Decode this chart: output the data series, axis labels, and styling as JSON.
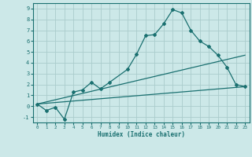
{
  "xlabel": "Humidex (Indice chaleur)",
  "bg_color": "#cce8e8",
  "grid_color": "#aacccc",
  "line_color": "#1a7070",
  "xlim": [
    -0.5,
    23.5
  ],
  "ylim": [
    -1.5,
    9.5
  ],
  "xticks": [
    0,
    1,
    2,
    3,
    4,
    5,
    6,
    7,
    8,
    9,
    10,
    11,
    12,
    13,
    14,
    15,
    16,
    17,
    18,
    19,
    20,
    21,
    22,
    23
  ],
  "yticks": [
    -1,
    0,
    1,
    2,
    3,
    4,
    5,
    6,
    7,
    8,
    9
  ],
  "curve1_x": [
    0,
    1,
    2,
    3,
    4,
    5,
    6,
    7,
    8,
    10,
    11,
    12,
    13,
    14,
    15,
    16,
    17,
    18,
    19,
    20,
    21,
    22,
    23
  ],
  "curve1_y": [
    0.2,
    -0.4,
    -0.1,
    -1.2,
    1.3,
    1.5,
    2.2,
    1.6,
    2.2,
    3.4,
    4.8,
    6.5,
    6.6,
    7.6,
    8.9,
    8.6,
    7.0,
    6.0,
    5.5,
    4.7,
    3.6,
    2.0,
    1.8
  ],
  "curve2_x": [
    0,
    23
  ],
  "curve2_y": [
    0.2,
    4.7
  ],
  "curve3_x": [
    0,
    23
  ],
  "curve3_y": [
    0.2,
    1.8
  ]
}
